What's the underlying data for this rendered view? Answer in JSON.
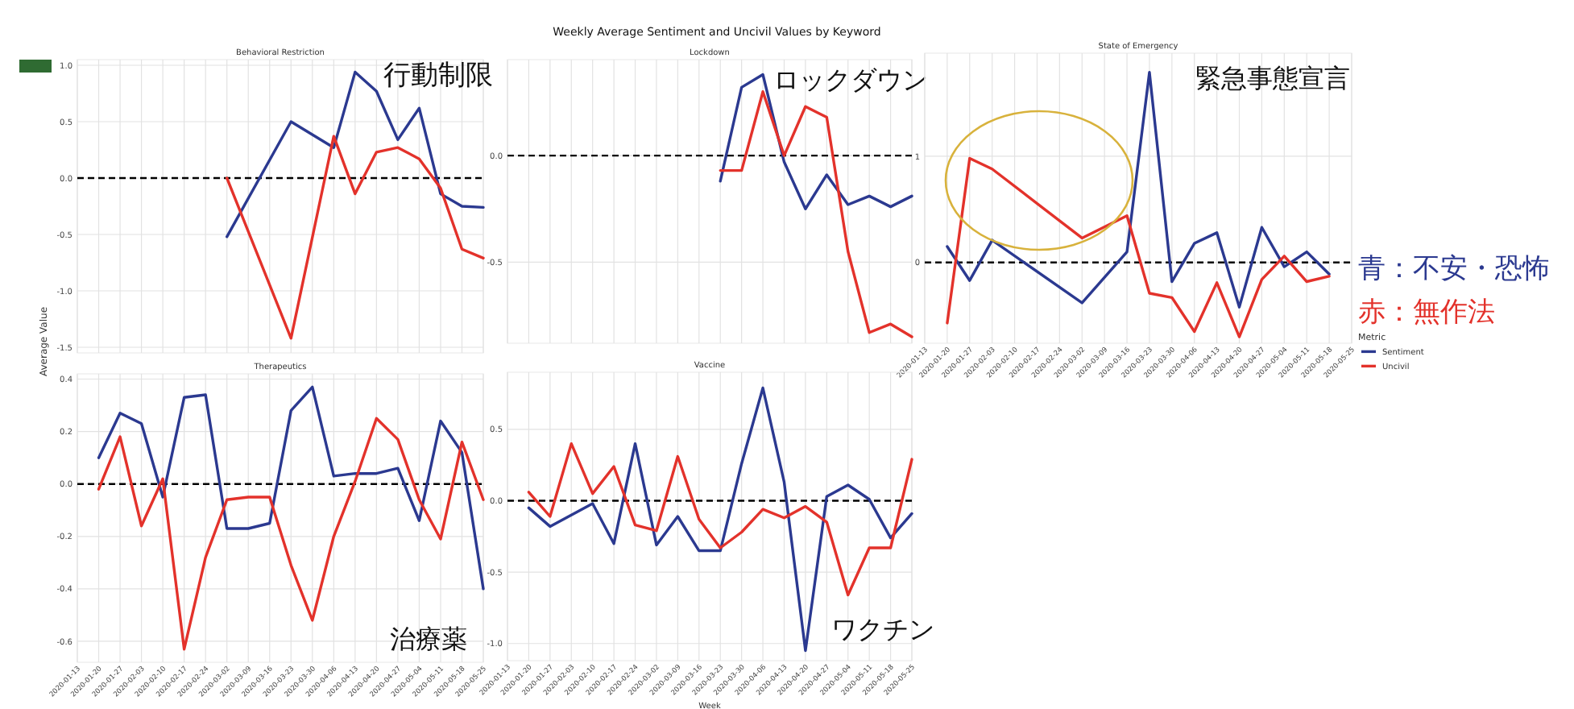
{
  "chart_data": [
    {
      "type": "line",
      "title": "Behavioral Restriction",
      "annotations": [
        "Weekly Average Sentiment and Uncivil Values by Keyword",
        "行動制限"
      ],
      "xlim": [
        "2020-01-13",
        "2020-05-25"
      ],
      "xticks": [
        {
          "value": "2020-01-13",
          "label": null
        },
        {
          "value": "2020-01-20",
          "label": null
        },
        {
          "value": "2020-01-27",
          "label": null
        },
        {
          "value": "2020-02-03",
          "label": null
        },
        {
          "value": "2020-02-10",
          "label": null
        },
        {
          "value": "2020-02-17",
          "label": null
        },
        {
          "value": "2020-02-24",
          "label": null
        },
        {
          "value": "2020-03-02",
          "label": null
        },
        {
          "value": "2020-03-09",
          "label": null
        },
        {
          "value": "2020-03-16",
          "label": null
        },
        {
          "value": "2020-03-23",
          "label": null
        },
        {
          "value": "2020-03-30",
          "label": null
        },
        {
          "value": "2020-04-06",
          "label": null
        },
        {
          "value": "2020-04-13",
          "label": null
        },
        {
          "value": "2020-04-20",
          "label": null
        },
        {
          "value": "2020-04-27",
          "label": null
        },
        {
          "value": "2020-05-04",
          "label": null
        },
        {
          "value": "2020-05-11",
          "label": null
        },
        {
          "value": "2020-05-18",
          "label": null
        },
        {
          "value": "2020-05-25",
          "label": null
        }
      ],
      "ylim": [
        -1.55,
        1.05
      ],
      "yticks": [
        {
          "value": -1.5,
          "label": "-1.5"
        },
        {
          "value": -1,
          "label": "-1.0"
        },
        {
          "value": -0.5,
          "label": "-0.5"
        },
        {
          "value": 0,
          "label": "0.0"
        },
        {
          "value": 0.5,
          "label": "0.5"
        },
        {
          "value": 1,
          "label": "1.0"
        }
      ],
      "grid": true,
      "tick_labels": "y",
      "ref_lines": [
        {
          "axis": "y",
          "value": 0,
          "color": "#000000",
          "line_style": "dashed"
        }
      ],
      "series": [
        {
          "color": "#2b3990",
          "x": [
            "2020-03-02",
            "2020-03-23",
            "2020-04-06",
            "2020-04-13",
            "2020-04-20",
            "2020-04-27",
            "2020-05-04",
            "2020-05-11",
            "2020-05-18",
            "2020-05-25"
          ],
          "values": [
            -0.52,
            0.5,
            0.27,
            0.94,
            0.77,
            0.34,
            0.62,
            -0.14,
            -0.25,
            -0.26
          ]
        },
        {
          "color": "#e3322b",
          "x": [
            "2020-03-02",
            "2020-03-23",
            "2020-04-06",
            "2020-04-13",
            "2020-04-20",
            "2020-04-27",
            "2020-05-04",
            "2020-05-11",
            "2020-05-18",
            "2020-05-25"
          ],
          "values": [
            0.0,
            -1.42,
            0.37,
            -0.14,
            0.23,
            0.27,
            0.17,
            -0.09,
            -0.63,
            -0.71
          ]
        }
      ]
    },
    {
      "type": "line",
      "title": "Lockdown",
      "annotations": [
        "ロックダウン"
      ],
      "xlim": [
        "2020-01-13",
        "2020-05-25"
      ],
      "xticks": [
        {
          "value": "2020-01-13",
          "label": null
        },
        {
          "value": "2020-01-20",
          "label": null
        },
        {
          "value": "2020-01-27",
          "label": null
        },
        {
          "value": "2020-02-03",
          "label": null
        },
        {
          "value": "2020-02-10",
          "label": null
        },
        {
          "value": "2020-02-17",
          "label": null
        },
        {
          "value": "2020-02-24",
          "label": null
        },
        {
          "value": "2020-03-02",
          "label": null
        },
        {
          "value": "2020-03-09",
          "label": null
        },
        {
          "value": "2020-03-16",
          "label": null
        },
        {
          "value": "2020-03-23",
          "label": null
        },
        {
          "value": "2020-03-30",
          "label": null
        },
        {
          "value": "2020-04-06",
          "label": null
        },
        {
          "value": "2020-04-13",
          "label": null
        },
        {
          "value": "2020-04-20",
          "label": null
        },
        {
          "value": "2020-04-27",
          "label": null
        },
        {
          "value": "2020-05-04",
          "label": null
        },
        {
          "value": "2020-05-11",
          "label": null
        },
        {
          "value": "2020-05-18",
          "label": null
        },
        {
          "value": "2020-05-25",
          "label": null
        }
      ],
      "ylim": [
        -0.88,
        0.45
      ],
      "yticks": [
        {
          "value": -0.5,
          "label": "-0.5"
        },
        {
          "value": 0,
          "label": "0.0"
        }
      ],
      "grid": true,
      "tick_labels": "y",
      "ref_lines": [
        {
          "axis": "y",
          "value": 0,
          "color": "#000000",
          "line_style": "dashed"
        }
      ],
      "series": [
        {
          "color": "#2b3990",
          "x": [
            "2020-03-23",
            "2020-03-30",
            "2020-04-06",
            "2020-04-13",
            "2020-04-20",
            "2020-04-27",
            "2020-05-04",
            "2020-05-11",
            "2020-05-18",
            "2020-05-25"
          ],
          "values": [
            -0.12,
            0.32,
            0.38,
            -0.03,
            -0.25,
            -0.09,
            -0.23,
            -0.19,
            -0.24,
            -0.19
          ]
        },
        {
          "color": "#e3322b",
          "x": [
            "2020-03-23",
            "2020-03-30",
            "2020-04-06",
            "2020-04-13",
            "2020-04-20",
            "2020-04-27",
            "2020-05-04",
            "2020-05-11",
            "2020-05-18",
            "2020-05-25"
          ],
          "values": [
            -0.07,
            -0.07,
            0.3,
            0.0,
            0.23,
            0.18,
            -0.45,
            -0.83,
            -0.79,
            -0.85
          ]
        }
      ]
    },
    {
      "type": "line",
      "title": "State of Emergency",
      "annotations": [
        "緊急事態宣言",
        "青：不安・恐怖",
        "赤：無作法"
      ],
      "legend": "right",
      "legend_title": "Metric",
      "xlim": [
        "2020-01-13",
        "2020-05-25"
      ],
      "xticks": [
        {
          "value": "2020-01-13",
          "label": "2020-01-13"
        },
        {
          "value": "2020-01-20",
          "label": "2020-01-20"
        },
        {
          "value": "2020-01-27",
          "label": "2020-01-27"
        },
        {
          "value": "2020-02-03",
          "label": "2020-02-03"
        },
        {
          "value": "2020-02-10",
          "label": "2020-02-10"
        },
        {
          "value": "2020-02-17",
          "label": "2020-02-17"
        },
        {
          "value": "2020-02-24",
          "label": "2020-02-24"
        },
        {
          "value": "2020-03-02",
          "label": "2020-03-02"
        },
        {
          "value": "2020-03-09",
          "label": "2020-03-09"
        },
        {
          "value": "2020-03-16",
          "label": "2020-03-16"
        },
        {
          "value": "2020-03-23",
          "label": "2020-03-23"
        },
        {
          "value": "2020-03-30",
          "label": "2020-03-30"
        },
        {
          "value": "2020-04-06",
          "label": "2020-04-06"
        },
        {
          "value": "2020-04-13",
          "label": "2020-04-13"
        },
        {
          "value": "2020-04-20",
          "label": "2020-04-20"
        },
        {
          "value": "2020-04-27",
          "label": "2020-04-27"
        },
        {
          "value": "2020-05-04",
          "label": "2020-05-04"
        },
        {
          "value": "2020-05-11",
          "label": "2020-05-11"
        },
        {
          "value": "2020-05-18",
          "label": "2020-05-18"
        },
        {
          "value": "2020-05-25",
          "label": "2020-05-25"
        }
      ],
      "ylim": [
        -0.76,
        1.97
      ],
      "yticks": [
        0,
        1
      ],
      "grid": true,
      "ref_lines": [
        {
          "axis": "y",
          "value": 0,
          "color": "#000000",
          "line_style": "dashed"
        }
      ],
      "series": [
        {
          "name": "Sentiment",
          "color": "#2b3990",
          "x": [
            "2020-01-20",
            "2020-01-27",
            "2020-02-03",
            "2020-03-02",
            "2020-03-16",
            "2020-03-23",
            "2020-03-30",
            "2020-04-06",
            "2020-04-13",
            "2020-04-20",
            "2020-04-27",
            "2020-05-04",
            "2020-05-11",
            "2020-05-18"
          ],
          "values": [
            0.15,
            -0.17,
            0.21,
            -0.38,
            0.1,
            1.79,
            -0.18,
            0.18,
            0.28,
            -0.42,
            0.33,
            -0.04,
            0.1,
            -0.11
          ]
        },
        {
          "name": "Uncivil",
          "color": "#e3322b",
          "x": [
            "2020-01-20",
            "2020-01-27",
            "2020-02-03",
            "2020-03-02",
            "2020-03-16",
            "2020-03-23",
            "2020-03-30",
            "2020-04-06",
            "2020-04-13",
            "2020-04-20",
            "2020-04-27",
            "2020-05-04",
            "2020-05-11",
            "2020-05-18"
          ],
          "values": [
            -0.57,
            0.98,
            0.88,
            0.23,
            0.44,
            -0.29,
            -0.33,
            -0.65,
            -0.19,
            -0.7,
            -0.16,
            0.06,
            -0.18,
            -0.13
          ]
        }
      ]
    },
    {
      "type": "line",
      "title": "Therapeutics",
      "ylabel": "Average Value",
      "annotations": [
        "治療薬"
      ],
      "xlim": [
        "2020-01-13",
        "2020-05-25"
      ],
      "xticks": [
        {
          "value": "2020-01-13",
          "label": "2020-01-13"
        },
        {
          "value": "2020-01-20",
          "label": "2020-01-20"
        },
        {
          "value": "2020-01-27",
          "label": "2020-01-27"
        },
        {
          "value": "2020-02-03",
          "label": "2020-02-03"
        },
        {
          "value": "2020-02-10",
          "label": "2020-02-10"
        },
        {
          "value": "2020-02-17",
          "label": "2020-02-17"
        },
        {
          "value": "2020-02-24",
          "label": "2020-02-24"
        },
        {
          "value": "2020-03-02",
          "label": "2020-03-02"
        },
        {
          "value": "2020-03-09",
          "label": "2020-03-09"
        },
        {
          "value": "2020-03-16",
          "label": "2020-03-16"
        },
        {
          "value": "2020-03-23",
          "label": "2020-03-23"
        },
        {
          "value": "2020-03-30",
          "label": "2020-03-30"
        },
        {
          "value": "2020-04-06",
          "label": "2020-04-06"
        },
        {
          "value": "2020-04-13",
          "label": "2020-04-13"
        },
        {
          "value": "2020-04-20",
          "label": "2020-04-20"
        },
        {
          "value": "2020-04-27",
          "label": "2020-04-27"
        },
        {
          "value": "2020-05-04",
          "label": "2020-05-04"
        },
        {
          "value": "2020-05-11",
          "label": "2020-05-11"
        },
        {
          "value": "2020-05-18",
          "label": "2020-05-18"
        },
        {
          "value": "2020-05-25",
          "label": "2020-05-25"
        }
      ],
      "x": [
        "2020-01-20",
        "2020-01-27",
        "2020-02-03",
        "2020-02-10",
        "2020-02-17",
        "2020-02-24",
        "2020-03-02",
        "2020-03-09",
        "2020-03-16",
        "2020-03-23",
        "2020-03-30",
        "2020-04-06",
        "2020-04-13",
        "2020-04-20",
        "2020-04-27",
        "2020-05-04",
        "2020-05-11",
        "2020-05-18",
        "2020-05-25"
      ],
      "ylim": [
        -0.68,
        0.42
      ],
      "yticks": [
        {
          "value": -0.6,
          "label": "-0.6"
        },
        {
          "value": -0.4,
          "label": "-0.4"
        },
        {
          "value": -0.2,
          "label": "-0.2"
        },
        {
          "value": 0,
          "label": "0.0"
        },
        {
          "value": 0.2,
          "label": "0.2"
        },
        {
          "value": 0.4,
          "label": "0.4"
        }
      ],
      "grid": true,
      "ref_lines": [
        {
          "axis": "y",
          "value": 0,
          "color": "#000000",
          "line_style": "dashed"
        }
      ],
      "series": [
        {
          "color": "#2b3990",
          "values": [
            0.1,
            0.27,
            0.23,
            -0.05,
            0.33,
            0.34,
            -0.17,
            -0.17,
            -0.15,
            0.28,
            0.37,
            0.03,
            0.04,
            0.04,
            0.06,
            -0.14,
            0.24,
            0.12,
            -0.4
          ]
        },
        {
          "color": "#e3322b",
          "values": [
            -0.02,
            0.18,
            -0.16,
            0.02,
            -0.63,
            -0.28,
            -0.06,
            -0.05,
            -0.05,
            -0.31,
            -0.52,
            -0.2,
            0.01,
            0.25,
            0.17,
            -0.06,
            -0.21,
            0.16,
            -0.06
          ]
        }
      ]
    },
    {
      "type": "line",
      "title": "Vaccine",
      "xlabel": "Week",
      "annotations": [
        "ワクチン"
      ],
      "xlim": [
        "2020-01-13",
        "2020-05-25"
      ],
      "xticks": [
        {
          "value": "2020-01-13",
          "label": "2020-01-13"
        },
        {
          "value": "2020-01-20",
          "label": "2020-01-20"
        },
        {
          "value": "2020-01-27",
          "label": "2020-01-27"
        },
        {
          "value": "2020-02-03",
          "label": "2020-02-03"
        },
        {
          "value": "2020-02-10",
          "label": "2020-02-10"
        },
        {
          "value": "2020-02-17",
          "label": "2020-02-17"
        },
        {
          "value": "2020-02-24",
          "label": "2020-02-24"
        },
        {
          "value": "2020-03-02",
          "label": "2020-03-02"
        },
        {
          "value": "2020-03-09",
          "label": "2020-03-09"
        },
        {
          "value": "2020-03-16",
          "label": "2020-03-16"
        },
        {
          "value": "2020-03-23",
          "label": "2020-03-23"
        },
        {
          "value": "2020-03-30",
          "label": "2020-03-30"
        },
        {
          "value": "2020-04-06",
          "label": "2020-04-06"
        },
        {
          "value": "2020-04-13",
          "label": "2020-04-13"
        },
        {
          "value": "2020-04-20",
          "label": "2020-04-20"
        },
        {
          "value": "2020-04-27",
          "label": "2020-04-27"
        },
        {
          "value": "2020-05-04",
          "label": "2020-05-04"
        },
        {
          "value": "2020-05-11",
          "label": "2020-05-11"
        },
        {
          "value": "2020-05-18",
          "label": "2020-05-18"
        },
        {
          "value": "2020-05-25",
          "label": "2020-05-25"
        }
      ],
      "x": [
        "2020-01-20",
        "2020-01-27",
        "2020-02-03",
        "2020-02-10",
        "2020-02-17",
        "2020-02-24",
        "2020-03-02",
        "2020-03-09",
        "2020-03-16",
        "2020-03-23",
        "2020-03-30",
        "2020-04-06",
        "2020-04-13",
        "2020-04-20",
        "2020-04-27",
        "2020-05-04",
        "2020-05-11",
        "2020-05-18",
        "2020-05-25"
      ],
      "ylim": [
        -1.12,
        0.9
      ],
      "yticks": [
        {
          "value": -1,
          "label": "-1.0"
        },
        {
          "value": -0.5,
          "label": "-0.5"
        },
        {
          "value": 0,
          "label": "0.0"
        },
        {
          "value": 0.5,
          "label": "0.5"
        }
      ],
      "grid": true,
      "ref_lines": [
        {
          "axis": "y",
          "value": 0,
          "color": "#000000",
          "line_style": "dashed"
        }
      ],
      "series": [
        {
          "color": "#2b3990",
          "values": [
            -0.05,
            -0.18,
            -0.1,
            -0.02,
            -0.3,
            0.4,
            -0.31,
            -0.11,
            -0.35,
            -0.35,
            0.26,
            0.79,
            0.13,
            -1.05,
            0.03,
            0.11,
            0.01,
            -0.26,
            -0.09
          ]
        },
        {
          "color": "#e3322b",
          "values": [
            0.06,
            -0.11,
            0.4,
            0.05,
            0.24,
            -0.17,
            -0.21,
            0.31,
            -0.13,
            -0.33,
            -0.22,
            -0.06,
            -0.12,
            -0.04,
            -0.15,
            -0.66,
            -0.33,
            -0.33,
            0.29
          ]
        }
      ]
    }
  ]
}
